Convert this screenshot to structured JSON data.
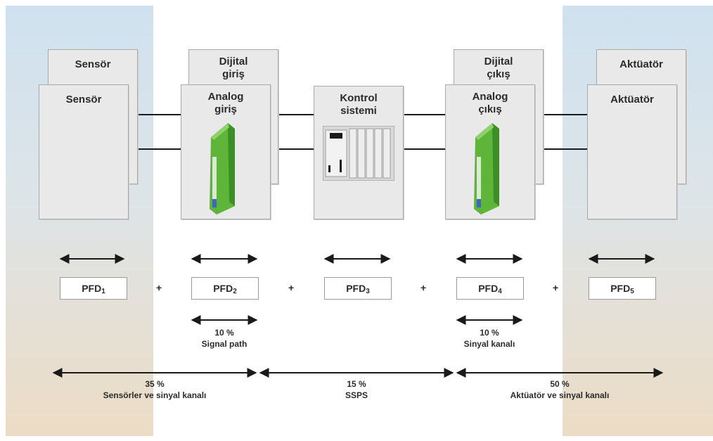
{
  "cards": {
    "sensor_back": "Sensör",
    "sensor_front": "Sensör",
    "digital_in_line1": "Dijital",
    "digital_in_line2": "giriş",
    "analog_in_line1": "Analog",
    "analog_in_line2": "giriş",
    "control_line1": "Kontrol",
    "control_line2": "sistemi",
    "digital_out_line1": "Dijital",
    "digital_out_line2": "çıkış",
    "analog_out_line1": "Analog",
    "analog_out_line2": "çıkış",
    "actuator_back": "Aktüatör",
    "actuator_front": "Aktüatör"
  },
  "pfd": [
    {
      "base": "PFD",
      "sub": "1"
    },
    {
      "base": "PFD",
      "sub": "2"
    },
    {
      "base": "PFD",
      "sub": "3"
    },
    {
      "base": "PFD",
      "sub": "4"
    },
    {
      "base": "PFD",
      "sub": "5"
    }
  ],
  "plus": "+",
  "signal_left": {
    "pct": "10 %",
    "name": "Signal path"
  },
  "signal_right": {
    "pct": "10 %",
    "name": "Sinyal kanalı"
  },
  "bottom": {
    "left": {
      "pct": "35 %",
      "name": "Sensörler ve sinyal kanalı"
    },
    "mid": {
      "pct": "15 %",
      "name": "SSPS"
    },
    "right": {
      "pct": "50 %",
      "name": "Aktüatör ve sinyal kanalı"
    }
  },
  "colors": {
    "module_green": "#5fb43a",
    "arrow": "#1a1a1a",
    "band_top": "#cfe1ef",
    "band_bottom": "#ecdcc5"
  }
}
